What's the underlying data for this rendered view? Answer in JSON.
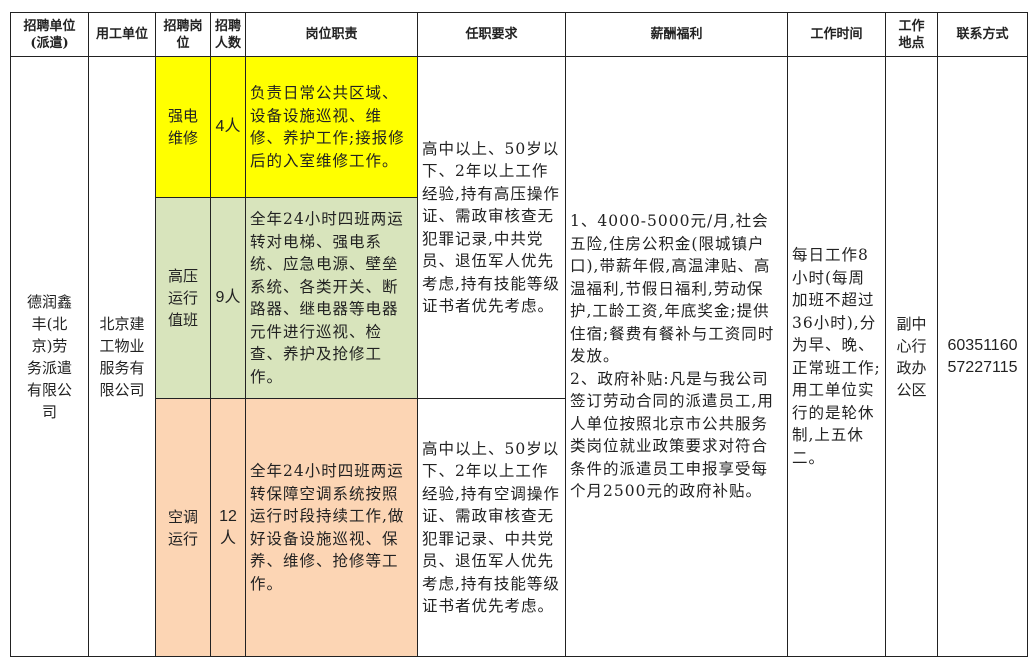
{
  "headers": [
    "招聘单位\n(派遣)",
    "用工单位",
    "招聘岗\n位",
    "招聘\n人数",
    "岗位职责",
    "任职要求",
    "薪酬福利",
    "工作时间",
    "工作\n地点",
    "联系方式"
  ],
  "colors": {
    "row1": "#ffff00",
    "row2": "#d8e4bc",
    "row3": "#fcd5b4"
  },
  "recruiter": "德润鑫\n丰(北\n京)劳\n务派遣\n有限公\n司",
  "employer": "北京建\n工物业\n服务有\n限公司",
  "rows": [
    {
      "position": "强电\n维修",
      "count": "4人",
      "duties": "负责日常公共区域、设备设施巡视、维修、养护工作;接报修后的入室维修工作。"
    },
    {
      "position": "高压\n运行\n值班",
      "count": "9人",
      "duties": "全年24小时四班两运转对电梯、强电系统、应急电源、壁垒系统、各类开关、断路器、继电器等电器元件进行巡视、检查、养护及抢修工作。"
    },
    {
      "position": "空调\n运行",
      "count": "12\n人",
      "duties": "全年24小时四班两运转保障空调系统按照运行时段持续工作,做好设备设施巡视、保养、维修、抢修等工作。"
    }
  ],
  "requirements": [
    "高中以上、50岁以下、2年以上工作经验,持有高压操作证、需政审核查无犯罪记录,中共党员、退伍军人优先考虑,持有技能等级证书者优先考虑。",
    "高中以上、50岁以下、2年以上工作经验,持有空调操作证、需政审核查无犯罪记录、中共党员、退伍军人优先考虑,持有技能等级证书者优先考虑。"
  ],
  "benefits": "1、4000-5000元/月,社会五险,住房公积金(限城镇户口),带薪年假,高温津贴、高温福利,节假日福利,劳动保护,工龄工资,年底奖金;提供住宿;餐费有餐补与工资同时发放。\n2、政府补贴:凡是与我公司签订劳动合同的派遣员工,用人单位按照北京市公共服务类岗位就业政策要求对符合条件的派遣员工申报享受每个月2500元的政府补贴。",
  "work_time": "每日工作8小时(每周加班不超过36小时),分为早、晚、正常班工作;用工单位实行的是轮休制,上五休二。",
  "location": "副中\n心行\n政办\n公区",
  "contact": "60351160\n57227115"
}
